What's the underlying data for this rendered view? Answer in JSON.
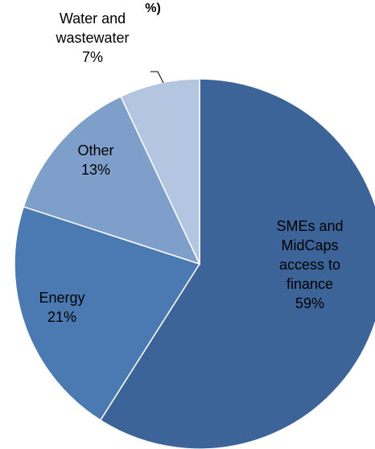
{
  "chart_data": {
    "type": "pie",
    "title": "%)",
    "slices": [
      {
        "label_lines": [
          "SMEs and",
          "MidCaps",
          "access to",
          "finance"
        ],
        "value": 59,
        "value_label": "59%",
        "color": "#3d6499"
      },
      {
        "label_lines": [
          "Energy"
        ],
        "value": 21,
        "value_label": "21%",
        "color": "#4a7ab1"
      },
      {
        "label_lines": [
          "Other"
        ],
        "value": 13,
        "value_label": "13%",
        "color": "#7f9fcb"
      },
      {
        "label_lines": [
          "Water and",
          "wastewater"
        ],
        "value": 7,
        "value_label": "7%",
        "color": "#b4c5e1"
      }
    ],
    "start": "12 o'clock",
    "direction": "clockwise",
    "legend": "none"
  }
}
